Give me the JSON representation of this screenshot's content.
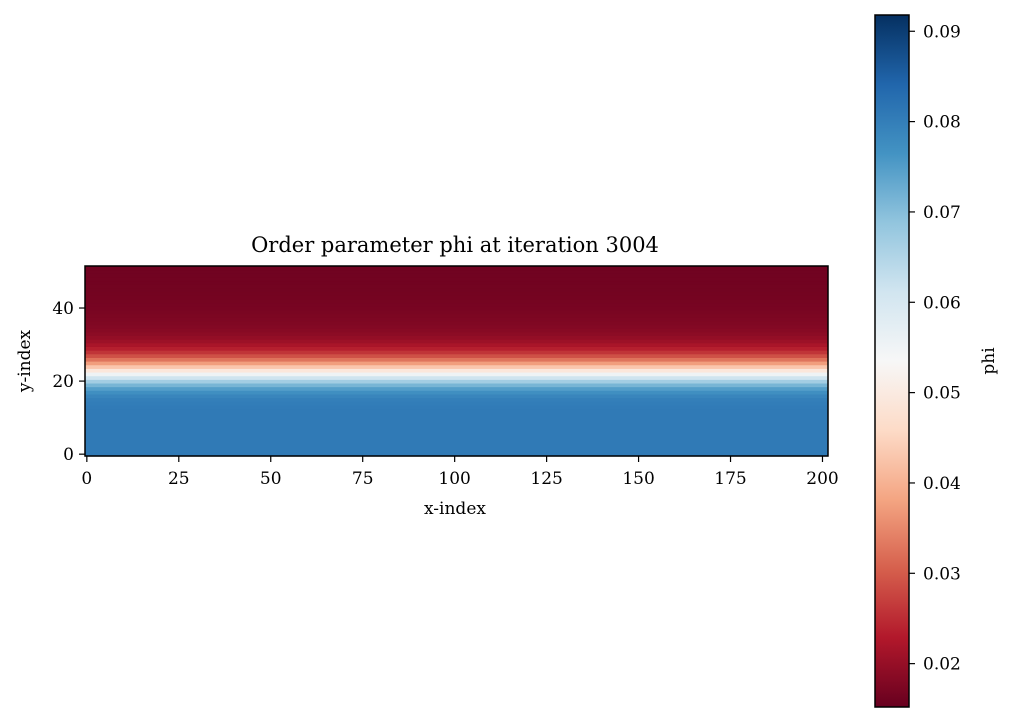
{
  "chart_data": {
    "type": "heatmap",
    "title": "Order parameter phi at iteration 3004",
    "xlabel": "x-index",
    "ylabel": "y-index",
    "xlim": [
      -0.5,
      201.5
    ],
    "ylim": [
      -0.5,
      51.5
    ],
    "xticks": [
      0,
      25,
      50,
      75,
      100,
      125,
      150,
      175,
      200
    ],
    "yticks": [
      0,
      20,
      40
    ],
    "shape": {
      "rows": 52,
      "cols": 202
    },
    "note_values": "phi is uniform along x; one value per row, row y = 0 at bottom",
    "row_values": [
      0.0808,
      0.0808,
      0.0808,
      0.0808,
      0.0808,
      0.0808,
      0.0808,
      0.0808,
      0.0808,
      0.0808,
      0.0808,
      0.0808,
      0.0807,
      0.0806,
      0.0803,
      0.0798,
      0.0788,
      0.0772,
      0.0748,
      0.0713,
      0.0668,
      0.0614,
      0.0553,
      0.049,
      0.0429,
      0.0374,
      0.0327,
      0.0289,
      0.0259,
      0.0236,
      0.0219,
      0.0206,
      0.0197,
      0.019,
      0.0185,
      0.0181,
      0.0178,
      0.0175,
      0.0173,
      0.0171,
      0.0169,
      0.0168,
      0.0167,
      0.0166,
      0.0165,
      0.0164,
      0.0164,
      0.0163,
      0.0163,
      0.0162,
      0.0162,
      0.0162
    ],
    "colormap": "RdBu",
    "colorbar": {
      "label": "phi",
      "vmin": 0.0152,
      "vmax": 0.0918,
      "ticks": [
        0.02,
        0.03,
        0.04,
        0.05,
        0.06,
        0.07,
        0.08,
        0.09
      ],
      "tick_labels": [
        "0.02",
        "0.03",
        "0.04",
        "0.05",
        "0.06",
        "0.07",
        "0.08",
        "0.09"
      ]
    },
    "colormap_stops": [
      "#67001f",
      "#b2182b",
      "#d6604d",
      "#f4a582",
      "#fddbc7",
      "#f7f7f7",
      "#d1e5f0",
      "#92c5de",
      "#4393c3",
      "#2166ac",
      "#053061"
    ]
  }
}
